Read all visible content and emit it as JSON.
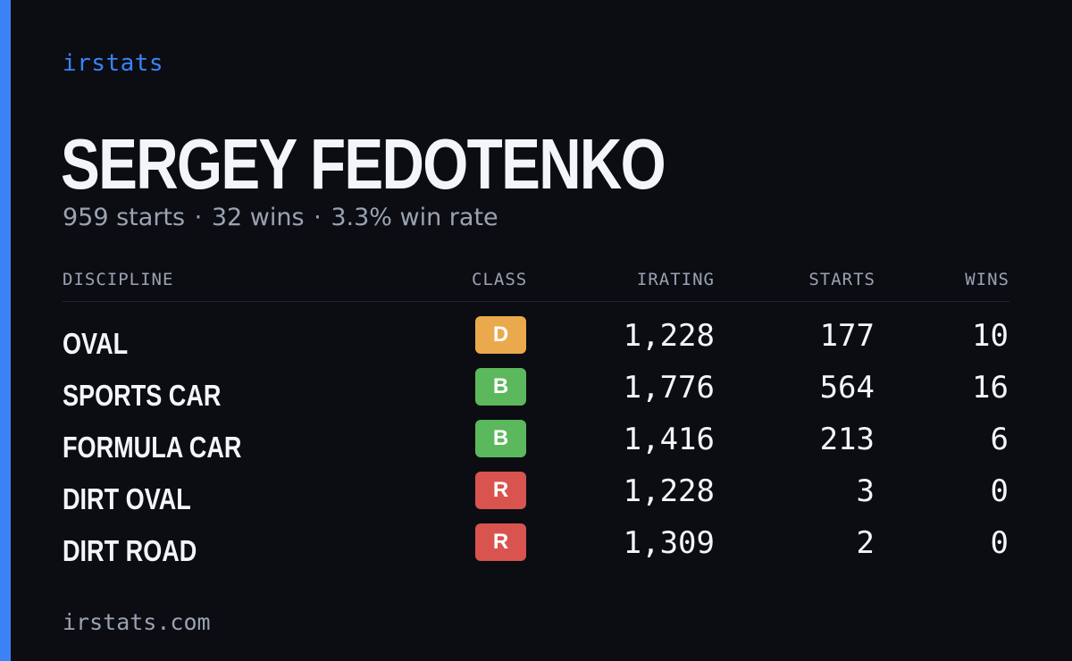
{
  "brand": "irstats",
  "driver": {
    "name": "SERGEY FEDOTENKO",
    "starts_text": "959 starts",
    "wins_text": "32 wins",
    "winrate_text": "3.3% win rate",
    "separator": "·"
  },
  "table": {
    "headers": {
      "discipline": "DISCIPLINE",
      "class": "CLASS",
      "irating": "IRATING",
      "starts": "STARTS",
      "wins": "WINS"
    },
    "rows": [
      {
        "discipline": "OVAL",
        "class": "D",
        "class_color": "#eaa94c",
        "irating": "1,228",
        "starts": "177",
        "wins": "10"
      },
      {
        "discipline": "SPORTS CAR",
        "class": "B",
        "class_color": "#5cb85c",
        "irating": "1,776",
        "starts": "564",
        "wins": "16"
      },
      {
        "discipline": "FORMULA CAR",
        "class": "B",
        "class_color": "#5cb85c",
        "irating": "1,416",
        "starts": "213",
        "wins": "6"
      },
      {
        "discipline": "DIRT OVAL",
        "class": "R",
        "class_color": "#d9534f",
        "irating": "1,228",
        "starts": "3",
        "wins": "0"
      },
      {
        "discipline": "DIRT ROAD",
        "class": "R",
        "class_color": "#d9534f",
        "irating": "1,309",
        "starts": "2",
        "wins": "0"
      }
    ]
  },
  "footer": "irstats.com",
  "colors": {
    "background": "#0b0d13",
    "accent": "#3b82f6",
    "text": "#f4f5f8",
    "muted": "#9aa3b2"
  }
}
